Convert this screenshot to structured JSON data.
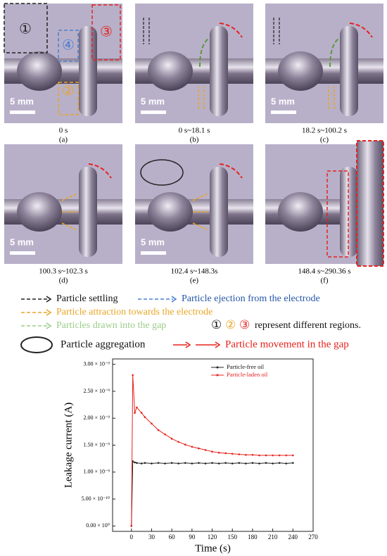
{
  "panels": [
    {
      "time": "0 s",
      "label": "(a)",
      "scale": "5 mm",
      "regions": [
        "①",
        "④",
        "②",
        "③"
      ]
    },
    {
      "time": "0 s~18.1 s",
      "label": "(b)",
      "scale": "5 mm"
    },
    {
      "time": "18.2 s~100.2 s",
      "label": "(c)",
      "scale": "5 mm"
    },
    {
      "time": "100.3 s~102.3 s",
      "label": "(d)",
      "scale": "5 mm"
    },
    {
      "time": "102.4 s~148.3s",
      "label": "(e)",
      "scale": "5 mm"
    },
    {
      "time": "148.4 s~290.36 s",
      "label": "(f)"
    }
  ],
  "legend": {
    "settling": "Particle settling",
    "ejection": "Particle ejection from the electrode",
    "attraction": "Particle attraction towards the electrode",
    "drawn": "Particles drawn into the gap",
    "regions_symbols": [
      "①",
      "②",
      "③"
    ],
    "regions_text": "represent different regions.",
    "aggregation": "Particle aggregation",
    "movement": "Particle movement in the gap"
  },
  "chart_data": {
    "type": "line",
    "x_label": "Time (s)",
    "y_label": "Leakage current (A)",
    "x": [
      0,
      2,
      5,
      8,
      15,
      20,
      30,
      40,
      50,
      60,
      70,
      80,
      90,
      100,
      110,
      120,
      130,
      140,
      150,
      160,
      170,
      180,
      190,
      200,
      210,
      220,
      230,
      240
    ],
    "series": [
      {
        "name": "Particle-free oil",
        "color": "#222222",
        "values": [
          0,
          1.2e-09,
          1.18e-09,
          1.17e-09,
          1.16e-09,
          1.17e-09,
          1.16e-09,
          1.17e-09,
          1.16e-09,
          1.17e-09,
          1.16e-09,
          1.17e-09,
          1.16e-09,
          1.17e-09,
          1.16e-09,
          1.17e-09,
          1.16e-09,
          1.17e-09,
          1.16e-09,
          1.17e-09,
          1.16e-09,
          1.17e-09,
          1.16e-09,
          1.17e-09,
          1.16e-09,
          1.17e-09,
          1.16e-09,
          1.17e-09
        ]
      },
      {
        "name": "Particle-laden oil",
        "color": "#e8201c",
        "values": [
          0,
          2.8e-09,
          2.1e-09,
          2.2e-09,
          2.1e-09,
          2.02e-09,
          1.9e-09,
          1.78e-09,
          1.7e-09,
          1.62e-09,
          1.56e-09,
          1.51e-09,
          1.47e-09,
          1.44e-09,
          1.41e-09,
          1.38e-09,
          1.36e-09,
          1.35e-09,
          1.34e-09,
          1.33e-09,
          1.32e-09,
          1.32e-09,
          1.31e-09,
          1.31e-09,
          1.31e-09,
          1.31e-09,
          1.31e-09,
          1.31e-09
        ]
      }
    ],
    "xlim": [
      -28,
      270
    ],
    "xticks": [
      0,
      30,
      60,
      90,
      120,
      150,
      180,
      210,
      240,
      270
    ],
    "ylim": [
      -1e-10,
      3.1e-09
    ],
    "yticks": [
      {
        "value": 0,
        "label": "0.00 × 10⁰"
      },
      {
        "value": 5e-10,
        "label": "5.00 × 10⁻¹⁰"
      },
      {
        "value": 1e-09,
        "label": "1.00 × 10⁻⁹"
      },
      {
        "value": 1.5e-09,
        "label": "1.50 × 10⁻⁹"
      },
      {
        "value": 2e-09,
        "label": "2.00 × 10⁻⁹"
      },
      {
        "value": 2.5e-09,
        "label": "2.50 × 10⁻⁹"
      },
      {
        "value": 3e-09,
        "label": "3.00 × 10⁻⁹"
      }
    ],
    "legend_position": "upper right"
  }
}
